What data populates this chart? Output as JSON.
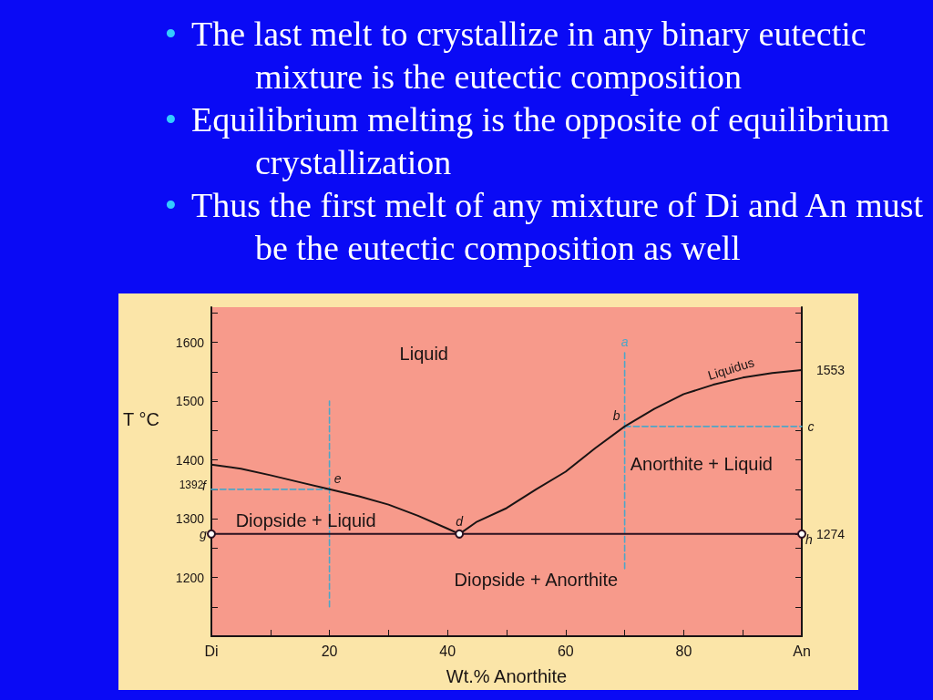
{
  "chart_data": {
    "type": "line",
    "xlabel": "Wt.% Anorthite",
    "ylabel": "T °C",
    "xlim": [
      0,
      100
    ],
    "xticks": [
      {
        "value": 0,
        "label": "Di"
      },
      {
        "value": 10,
        "label": null
      },
      20,
      {
        "value": 30,
        "label": null
      },
      40,
      {
        "value": 50,
        "label": null
      },
      60,
      {
        "value": 70,
        "label": null
      },
      80,
      {
        "value": 90,
        "label": null
      },
      {
        "value": 100,
        "label": "An"
      }
    ],
    "ylim": [
      1100,
      1660
    ],
    "yticks": [
      {
        "value": 1150,
        "label": null
      },
      1200,
      {
        "value": 1250,
        "label": null
      },
      1300,
      {
        "value": 1350,
        "label": null
      },
      1400,
      {
        "value": 1450,
        "label": null
      },
      1500,
      {
        "value": 1550,
        "label": null
      },
      1600,
      {
        "value": 1650,
        "label": null
      }
    ],
    "y2lim": [
      1100,
      1660
    ],
    "y2ticks": [
      {
        "value": 1150,
        "label": null
      },
      {
        "value": 1200,
        "label": null
      },
      {
        "value": 1250,
        "label": null
      },
      1274,
      {
        "value": 1300,
        "label": null
      },
      {
        "value": 1350,
        "label": null
      },
      {
        "value": 1400,
        "label": null
      },
      {
        "value": 1450,
        "label": null
      },
      {
        "value": 1500,
        "label": null
      },
      1553,
      {
        "value": 1600,
        "label": null
      },
      {
        "value": 1650,
        "label": null
      }
    ],
    "grid": false,
    "series": [
      {
        "color": "#1a1414",
        "marker": "none",
        "line_style": "solid",
        "x": [
          0,
          5,
          10,
          15,
          20,
          25,
          30,
          35,
          40,
          42
        ],
        "values": [
          1392,
          1385,
          1374,
          1362,
          1350,
          1338,
          1324,
          1305,
          1283,
          1274
        ]
      },
      {
        "color": "#1a1414",
        "marker": "none",
        "line_style": "solid",
        "x": [
          42,
          45,
          50,
          55,
          60,
          65,
          70,
          75,
          80,
          85,
          90,
          95,
          100
        ],
        "values": [
          1274,
          1295,
          1318,
          1350,
          1380,
          1420,
          1457,
          1487,
          1512,
          1528,
          1540,
          1548,
          1553
        ]
      },
      {
        "color": "#2a1020",
        "marker": "circle",
        "line_style": "solid",
        "x": [
          0,
          42,
          100
        ],
        "values": [
          1274,
          1274,
          1274
        ]
      },
      {
        "color": "#4da6c8",
        "marker": "none",
        "line_style": "dashed",
        "x": [
          20,
          20
        ],
        "values": [
          1150,
          1500
        ]
      },
      {
        "color": "#4da6c8",
        "marker": "none",
        "line_style": "dashed",
        "x": [
          0,
          20
        ],
        "values": [
          1350,
          1350
        ]
      },
      {
        "color": "#4da6c8",
        "marker": "none",
        "line_style": "dashed",
        "x": [
          70,
          70
        ],
        "values": [
          1215,
          1585
        ]
      },
      {
        "color": "#4da6c8",
        "marker": "none",
        "line_style": "dashed",
        "x": [
          70,
          100
        ],
        "values": [
          1457,
          1457
        ]
      }
    ],
    "annotations": [
      "• The last melt to crystallize in any binary eutectic mixture is the eutectic composition",
      "• Equilibrium melting is the opposite of equilibrium crystallization",
      "• Thus the first melt of any mixture of Di and An must be the eutectic composition as well",
      "Liquid",
      "Diopside + Liquid",
      "Anorthite + Liquid",
      "Diopside + Anorthite",
      "Liquidus",
      {
        "text": "1392",
        "x": 0,
        "y": 1392
      },
      {
        "text": "a",
        "x": 70,
        "y": 1585
      },
      {
        "text": "b",
        "x": 70,
        "y": 1457
      },
      {
        "text": "c",
        "x": 100,
        "y": 1457
      },
      {
        "text": "d",
        "x": 42,
        "y": 1274
      },
      {
        "text": "e",
        "x": 20,
        "y": 1350
      },
      {
        "text": "f",
        "x": 0,
        "y": 1350
      },
      {
        "text": "g",
        "x": 0,
        "y": 1274
      },
      {
        "text": "h",
        "x": 100,
        "y": 1274
      }
    ]
  }
}
